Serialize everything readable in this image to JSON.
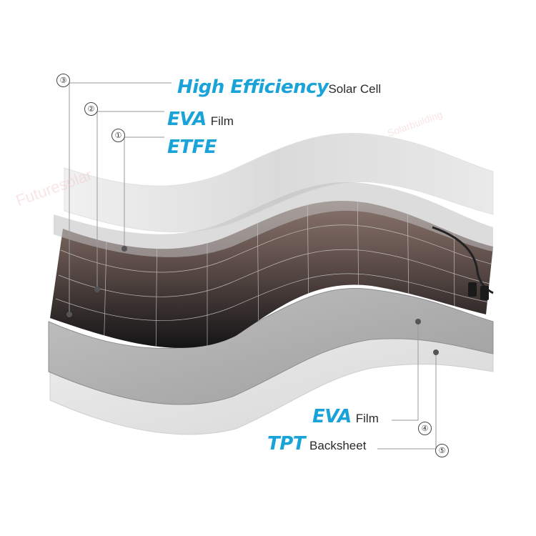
{
  "colors": {
    "accent": "#1aa3d9",
    "leader": "#9a9a9a",
    "layer_light": "#dcdcdc",
    "layer_mid": "#c4c4c4",
    "cell_dark": "#1c1c1e",
    "cell_brown": "#6a5650"
  },
  "labels": [
    {
      "id": "top1",
      "num": "③",
      "bold": "High Efficiency",
      "rest": "Solar Cell"
    },
    {
      "id": "top2",
      "num": "②",
      "bold": "EVA",
      "rest": "Film"
    },
    {
      "id": "top3",
      "num": "①",
      "bold": "ETFE",
      "rest": ""
    },
    {
      "id": "bot1",
      "num": "④",
      "bold": "EVA",
      "rest": "Film"
    },
    {
      "id": "bot2",
      "num": "⑤",
      "bold": "TPT",
      "rest": "Backsheet"
    }
  ],
  "watermark": {
    "brand": "Futuresolar",
    "brand2": "Solarbuilding"
  }
}
